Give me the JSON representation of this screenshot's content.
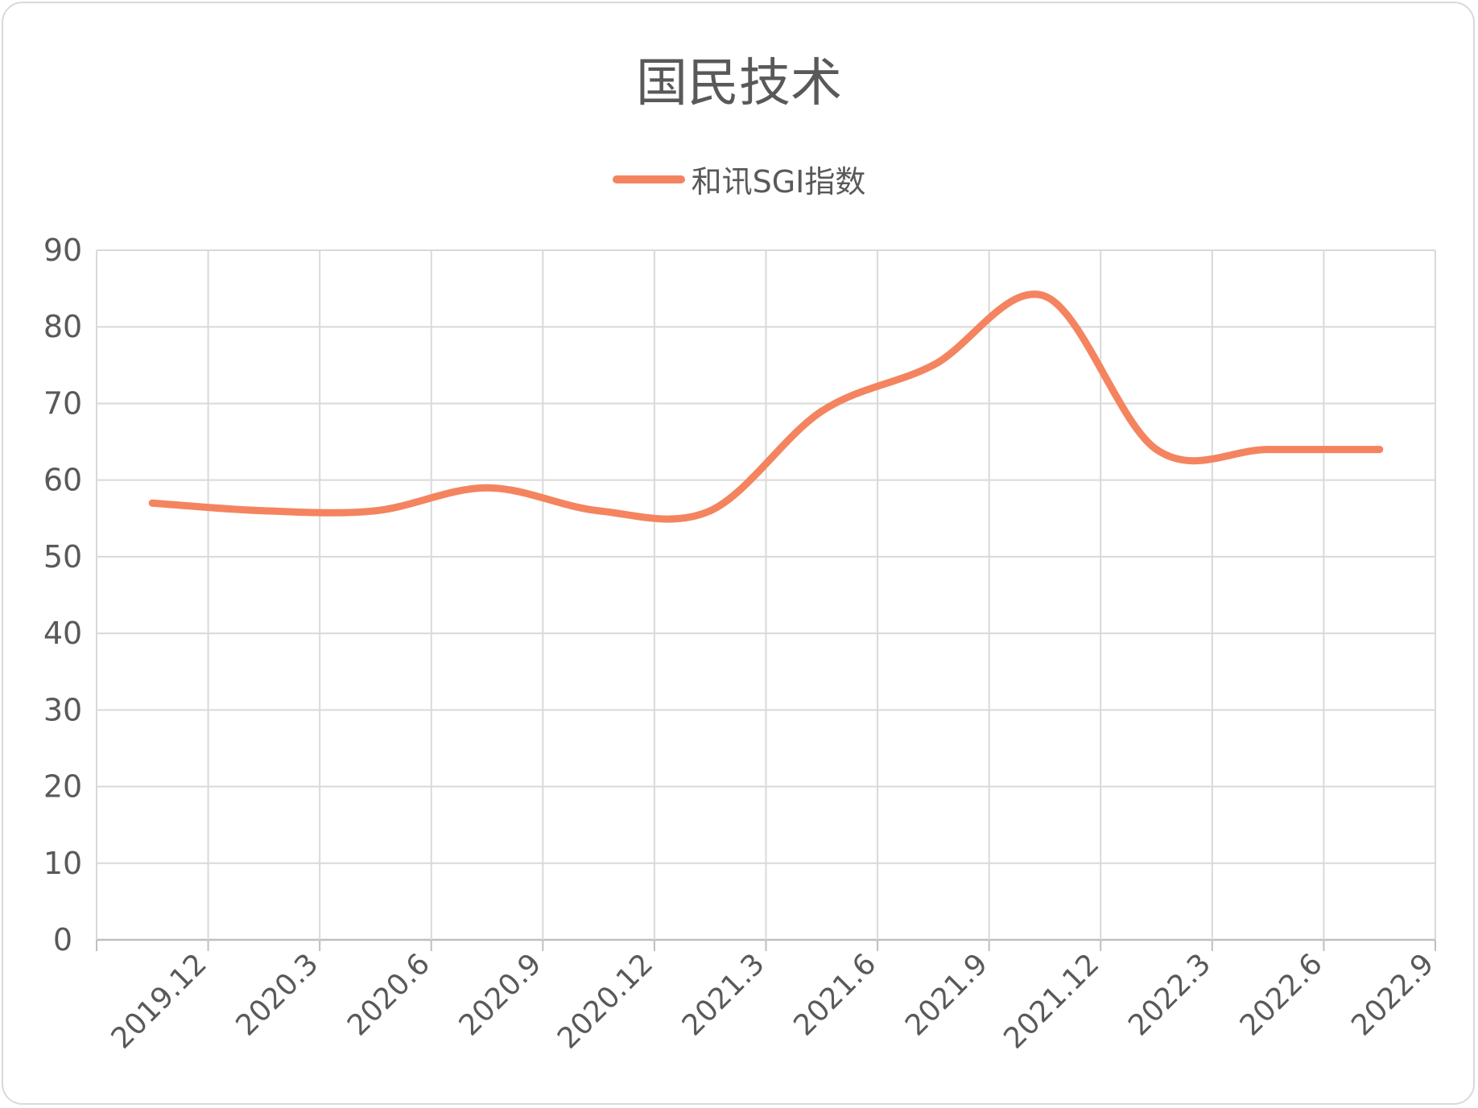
{
  "chart_data": {
    "type": "line",
    "title": "国民技术",
    "categories": [
      "2019.12",
      "2020.3",
      "2020.6",
      "2020.9",
      "2020.12",
      "2021.3",
      "2021.6",
      "2021.9",
      "2021.12",
      "2022.3",
      "2022.6",
      "2022.9"
    ],
    "x_points": [
      0.5,
      1.5,
      2.5,
      3.5,
      4.5,
      5.5,
      6.5,
      7.5,
      8.5,
      9.5,
      10.5,
      11.5
    ],
    "series": [
      {
        "name": "和讯SGI指数",
        "color": "#F4845F",
        "values": [
          57,
          56,
          56,
          59,
          56,
          56,
          69,
          75,
          84,
          64,
          64,
          64
        ]
      }
    ],
    "y_ticks": [
      0,
      10,
      20,
      30,
      40,
      50,
      60,
      70,
      80,
      90
    ],
    "ylim": [
      0,
      90
    ],
    "xlabel": "",
    "ylabel": "",
    "grid": true,
    "legend_position": "top",
    "smooth": true
  }
}
